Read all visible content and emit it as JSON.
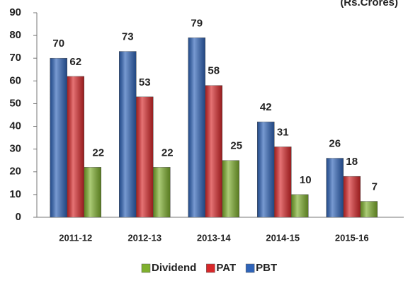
{
  "chart_data": {
    "type": "bar",
    "unit_label": "(Rs.Crores)",
    "categories": [
      "2011-12",
      "2012-13",
      "2013-14",
      "2014-15",
      "2015-16"
    ],
    "series": [
      {
        "name": "Dividend",
        "color": "#7fb02e",
        "values": [
          22,
          22,
          25,
          10,
          7
        ]
      },
      {
        "name": "PAT",
        "color": "#d8282a",
        "values": [
          62,
          53,
          58,
          31,
          18
        ]
      },
      {
        "name": "PBT",
        "color": "#2f64b9",
        "values": [
          70,
          73,
          79,
          42,
          26
        ]
      }
    ],
    "ylim": [
      0,
      90
    ],
    "yticks": [
      0,
      10,
      20,
      30,
      40,
      50,
      60,
      70,
      80,
      90
    ],
    "grid": false,
    "legend": "bottom"
  }
}
